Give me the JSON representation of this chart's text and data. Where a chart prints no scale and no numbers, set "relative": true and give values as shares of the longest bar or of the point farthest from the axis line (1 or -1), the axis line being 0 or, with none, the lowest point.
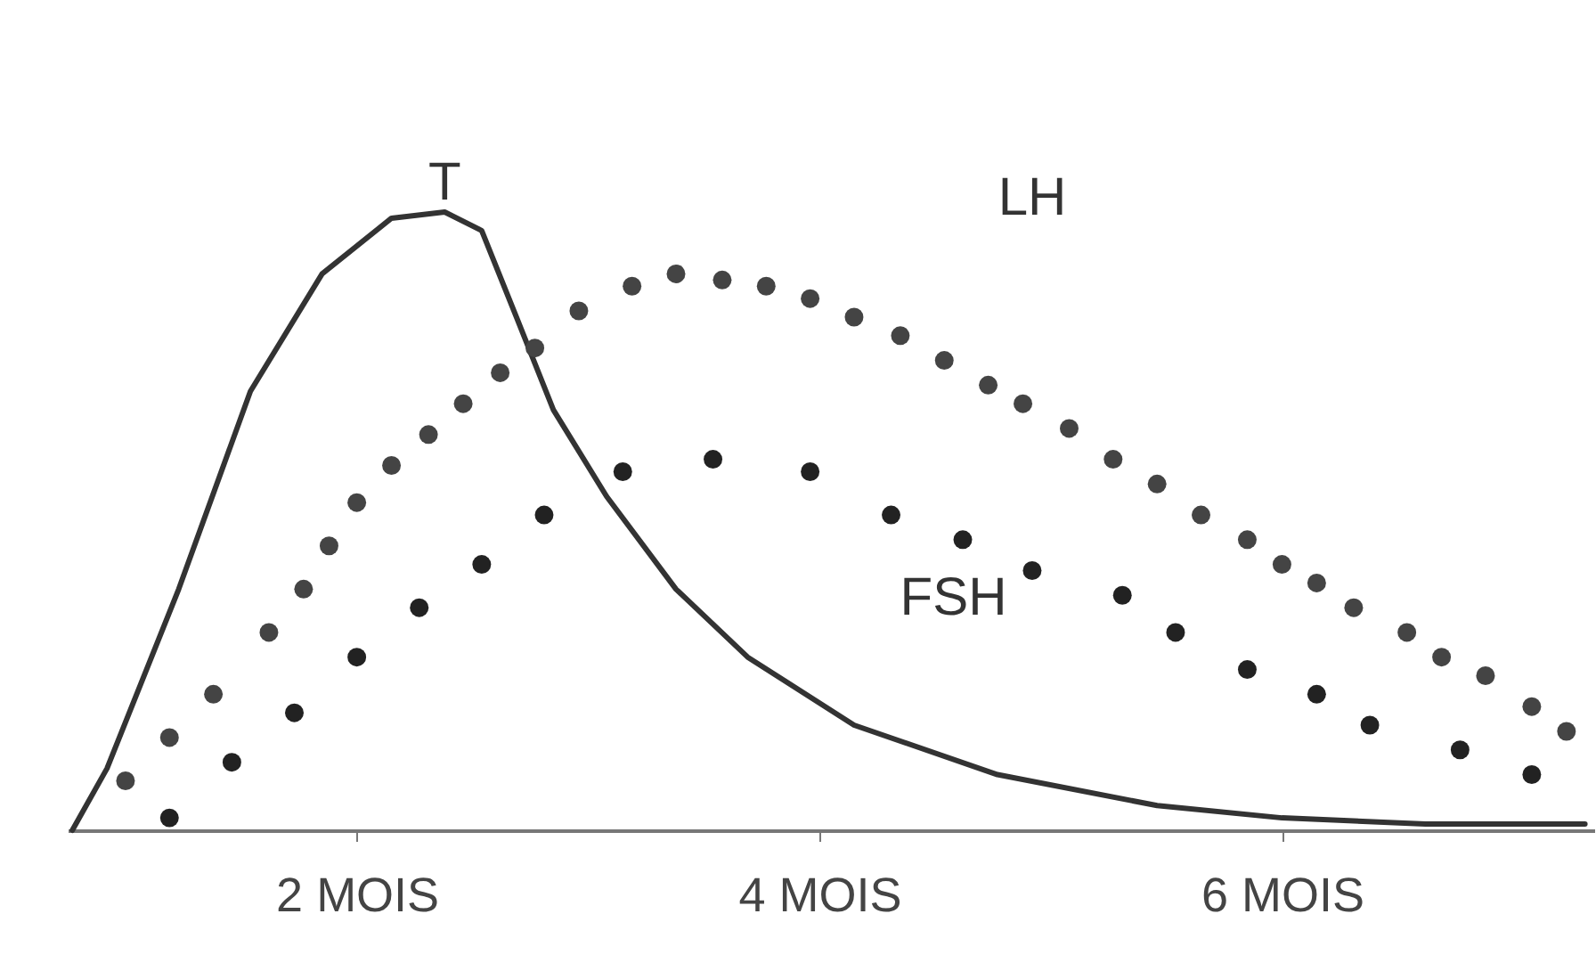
{
  "chart_data": {
    "type": "line",
    "relative": true,
    "xlim": [
      0.75,
      7.35
    ],
    "xticks": [
      {
        "value": 2,
        "label": "2 MOIS"
      },
      {
        "value": 4,
        "label": "4 MOIS"
      },
      {
        "value": 6,
        "label": "6 MOIS"
      }
    ],
    "grid": false,
    "legend": false,
    "series": [
      {
        "name": "T",
        "marker": "none",
        "color": "#333333",
        "x": [
          0.77,
          0.92,
          1.23,
          1.54,
          1.85,
          2.15,
          2.38,
          2.54,
          2.69,
          2.85,
          3.08,
          3.38,
          3.69,
          4.15,
          4.77,
          5.46,
          6.0,
          6.62,
          7.31
        ],
        "values": [
          0,
          0.1,
          0.39,
          0.71,
          0.9,
          0.99,
          1,
          0.97,
          0.83,
          0.68,
          0.54,
          0.39,
          0.28,
          0.17,
          0.09,
          0.04,
          0.02,
          0.01,
          0.01
        ]
      },
      {
        "name": "LH",
        "type": "scatter",
        "marker": "circle",
        "color": "#444444",
        "x": [
          1.0,
          1.19,
          1.38,
          1.62,
          1.77,
          1.88,
          2.0,
          2.15,
          2.31,
          2.46,
          2.62,
          2.77,
          2.96,
          3.19,
          3.38,
          3.58,
          3.77,
          3.96,
          4.15,
          4.35,
          4.54,
          4.73,
          4.88,
          5.08,
          5.27,
          5.46,
          5.65,
          5.85,
          6.0,
          6.15,
          6.31,
          6.54,
          6.69,
          6.88,
          7.08,
          7.23
        ],
        "values": [
          0.08,
          0.15,
          0.22,
          0.32,
          0.39,
          0.46,
          0.53,
          0.59,
          0.64,
          0.69,
          0.74,
          0.78,
          0.84,
          0.88,
          0.9,
          0.89,
          0.88,
          0.86,
          0.83,
          0.8,
          0.76,
          0.72,
          0.69,
          0.65,
          0.6,
          0.56,
          0.51,
          0.47,
          0.43,
          0.4,
          0.36,
          0.32,
          0.28,
          0.25,
          0.2,
          0.16
        ]
      },
      {
        "name": "FSH",
        "type": "scatter",
        "marker": "circle",
        "color": "#222222",
        "x": [
          1.19,
          1.46,
          1.73,
          2.0,
          2.27,
          2.54,
          2.81,
          3.15,
          3.54,
          3.96,
          4.31,
          4.62,
          4.92,
          5.31,
          5.54,
          5.85,
          6.15,
          6.38,
          6.77,
          7.08
        ],
        "values": [
          0.02,
          0.11,
          0.19,
          0.28,
          0.36,
          0.43,
          0.51,
          0.58,
          0.6,
          0.58,
          0.51,
          0.47,
          0.42,
          0.38,
          0.32,
          0.26,
          0.22,
          0.17,
          0.13,
          0.09
        ]
      }
    ]
  }
}
